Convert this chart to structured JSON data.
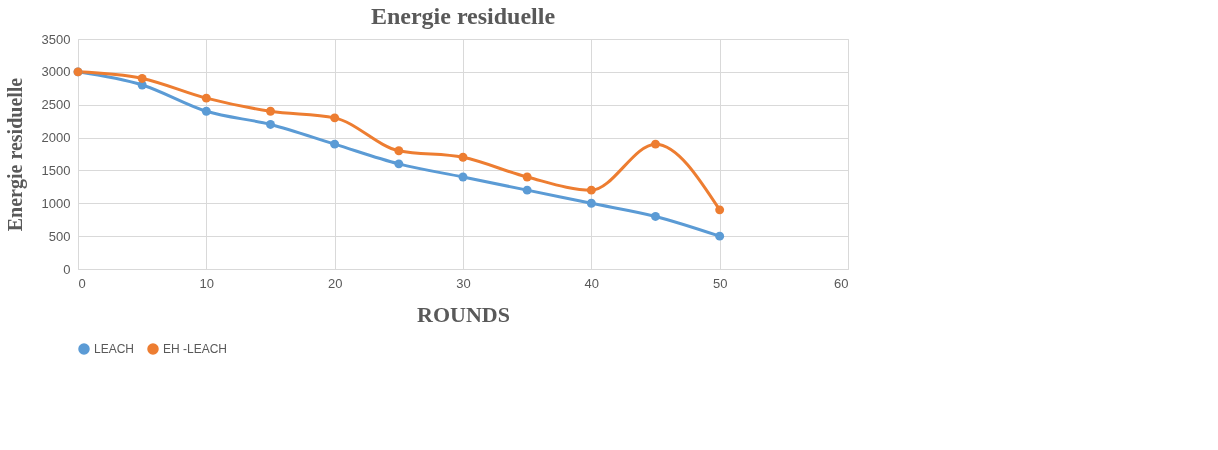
{
  "chart_data": {
    "type": "line",
    "title": "Energie residuelle",
    "xlabel": "ROUNDS",
    "ylabel": "Energie residuelle",
    "x": [
      0,
      5,
      10,
      15,
      20,
      25,
      30,
      35,
      40,
      45,
      50
    ],
    "series": [
      {
        "name": "LEACH",
        "color": "#5b9bd5",
        "values": [
          3000,
          2800,
          2400,
          2200,
          1900,
          1600,
          1400,
          1200,
          1000,
          800,
          500
        ]
      },
      {
        "name": "EH -LEACH",
        "color": "#ed7d31",
        "values": [
          3000,
          2900,
          2600,
          2400,
          2300,
          1800,
          1700,
          1400,
          1200,
          1900,
          900
        ]
      }
    ],
    "xlim": [
      0,
      60
    ],
    "xticks": [
      0,
      10,
      20,
      30,
      40,
      50,
      60
    ],
    "ylim": [
      0,
      3500
    ],
    "yticks": [
      0,
      500,
      1000,
      1500,
      2000,
      2500,
      3000,
      3500
    ],
    "grid": true,
    "legend": "bottom",
    "marker": "circle",
    "line_style": "solid"
  }
}
